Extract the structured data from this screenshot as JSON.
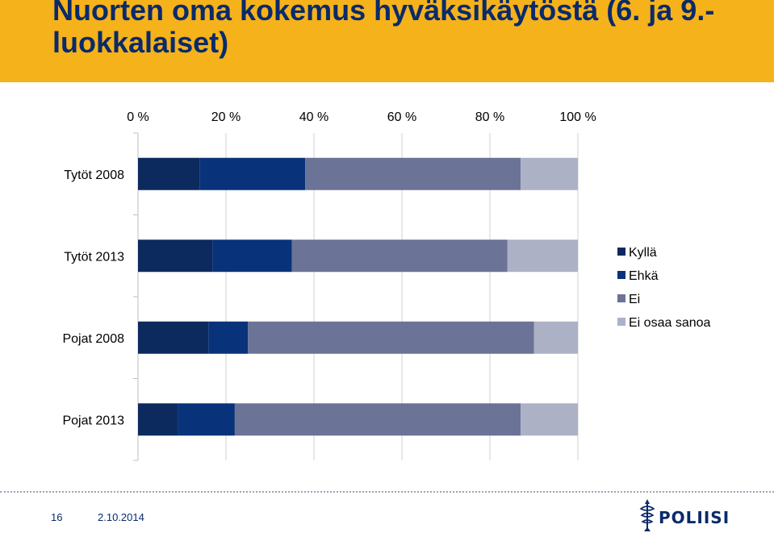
{
  "header": {
    "title": "Nuorten oma kokemus hyväksikäytöstä (6. ja 9.-luokkalaiset)"
  },
  "footer": {
    "page_number": "16",
    "date": "2.10.2014",
    "logo_text": "POLIISI"
  },
  "colors": {
    "header_bg": "#f5b21a",
    "title_text": "#0a2a6b",
    "series": [
      "#0c2a5e",
      "#08337a",
      "#6b7396",
      "#adb1c6"
    ]
  },
  "chart_data": {
    "type": "bar",
    "orientation": "horizontal",
    "stacked": "percent",
    "categories": [
      "Tytöt 2008",
      "Tytöt 2013",
      "Pojat 2008",
      "Pojat 2013"
    ],
    "series": [
      {
        "name": "Kyllä",
        "values": [
          14,
          17,
          16,
          9
        ]
      },
      {
        "name": "Ehkä",
        "values": [
          24,
          18,
          9,
          13
        ]
      },
      {
        "name": "Ei",
        "values": [
          49,
          49,
          65,
          65
        ]
      },
      {
        "name": "Ei osaa sanoa",
        "values": [
          13,
          16,
          10,
          13
        ]
      }
    ],
    "x_ticks": [
      "0 %",
      "20 %",
      "40 %",
      "60 %",
      "80 %",
      "100 %"
    ],
    "xlim": [
      0,
      100
    ],
    "x_axis_position": "top",
    "grid": true,
    "legend_position": "right"
  }
}
